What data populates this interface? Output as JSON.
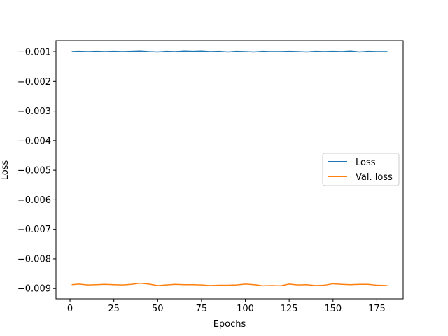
{
  "chart_data": {
    "type": "line",
    "title": "",
    "xlabel": "Epochs",
    "ylabel": "Loss",
    "xlim": [
      -8,
      190
    ],
    "ylim": [
      -0.00935,
      -0.00062
    ],
    "xticks": [
      0,
      25,
      50,
      75,
      100,
      125,
      150,
      175
    ],
    "xtick_labels": [
      "0",
      "25",
      "50",
      "75",
      "100",
      "125",
      "150",
      "175"
    ],
    "yticks": [
      -0.001,
      -0.002,
      -0.003,
      -0.004,
      -0.005,
      -0.006,
      -0.007,
      -0.008,
      -0.009
    ],
    "ytick_labels": [
      "−0.001",
      "−0.002",
      "−0.003",
      "−0.004",
      "−0.005",
      "−0.006",
      "−0.007",
      "−0.008",
      "−0.009"
    ],
    "grid": false,
    "legend_position": "center-right",
    "series": [
      {
        "name": "Loss",
        "color": "#1f77b4",
        "x": [
          1,
          5,
          10,
          15,
          20,
          25,
          30,
          35,
          40,
          45,
          50,
          55,
          60,
          65,
          70,
          75,
          80,
          85,
          90,
          95,
          100,
          105,
          110,
          115,
          120,
          125,
          130,
          135,
          140,
          145,
          150,
          155,
          160,
          165,
          170,
          175,
          181
        ],
        "values": [
          -0.001,
          -0.00099,
          -0.001,
          -0.00099,
          -0.001,
          -0.00099,
          -0.001,
          -0.00099,
          -0.00098,
          -0.001,
          -0.00101,
          -0.00099,
          -0.001,
          -0.00098,
          -0.00099,
          -0.00098,
          -0.001,
          -0.00099,
          -0.00101,
          -0.00099,
          -0.001,
          -0.00101,
          -0.00099,
          -0.001,
          -0.001,
          -0.00099,
          -0.001,
          -0.00101,
          -0.00099,
          -0.001,
          -0.00099,
          -0.001,
          -0.00098,
          -0.00101,
          -0.00099,
          -0.001,
          -0.001
        ]
      },
      {
        "name": "Val. loss",
        "color": "#ff7f0e",
        "x": [
          1,
          5,
          10,
          15,
          20,
          25,
          30,
          35,
          40,
          45,
          50,
          55,
          60,
          65,
          70,
          75,
          80,
          85,
          90,
          95,
          100,
          105,
          110,
          115,
          120,
          125,
          130,
          135,
          140,
          145,
          150,
          155,
          160,
          165,
          170,
          175,
          181
        ],
        "values": [
          -0.00887,
          -0.00885,
          -0.00888,
          -0.00887,
          -0.00886,
          -0.00887,
          -0.00888,
          -0.00886,
          -0.00882,
          -0.00885,
          -0.0089,
          -0.00888,
          -0.00886,
          -0.00887,
          -0.00887,
          -0.00888,
          -0.0089,
          -0.00889,
          -0.00889,
          -0.00888,
          -0.00885,
          -0.00887,
          -0.00891,
          -0.0089,
          -0.00891,
          -0.00885,
          -0.00888,
          -0.00887,
          -0.0089,
          -0.00889,
          -0.00884,
          -0.00886,
          -0.00887,
          -0.00886,
          -0.00886,
          -0.00889,
          -0.0089
        ]
      }
    ]
  }
}
